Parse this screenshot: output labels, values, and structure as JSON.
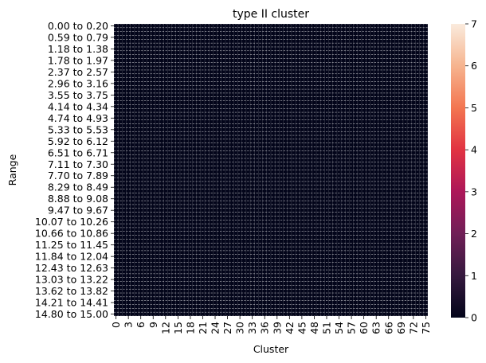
{
  "chart_data": {
    "type": "heatmap",
    "title": "type II cluster",
    "xlabel": "Cluster",
    "ylabel": "Range",
    "x_tick_labels": [
      "0",
      "3",
      "6",
      "9",
      "12",
      "15",
      "18",
      "21",
      "24",
      "27",
      "30",
      "33",
      "36",
      "39",
      "42",
      "45",
      "48",
      "51",
      "54",
      "57",
      "60",
      "63",
      "66",
      "69",
      "72",
      "75"
    ],
    "x_tick_step": 3,
    "n_columns": 76,
    "y_tick_labels": [
      "0.00 to 0.20",
      "0.59 to 0.79",
      "1.18 to 1.38",
      "1.78 to 1.97",
      "2.37 to 2.57",
      "2.96 to 3.16",
      "3.55 to 3.75",
      "4.14 to 4.34",
      "4.74 to 4.93",
      "5.33 to 5.53",
      "5.92 to 6.12",
      "6.51 to 6.71",
      "7.11 to 7.30",
      "7.70 to 7.89",
      "8.29 to 8.49",
      "8.88 to 9.08",
      "9.47 to 9.67",
      "10.07 to 10.26",
      "10.66 to 10.86",
      "11.25 to 11.45",
      "11.84 to 12.04",
      "12.43 to 12.63",
      "13.03 to 13.22",
      "13.62 to 13.82",
      "14.21 to 14.41",
      "14.80 to 15.00"
    ],
    "y_tick_step": 3,
    "n_rows": 76,
    "value_range": [
      0,
      7
    ],
    "dominant_value": 0,
    "colorbar_ticks": [
      "0",
      "1",
      "2",
      "3",
      "4",
      "5",
      "6",
      "7"
    ],
    "colormap": "rocket",
    "colormap_stops": [
      "#03051a",
      "#35193e",
      "#701f57",
      "#ad1759",
      "#e13342",
      "#f37651",
      "#f6b48f",
      "#faebdd"
    ]
  }
}
